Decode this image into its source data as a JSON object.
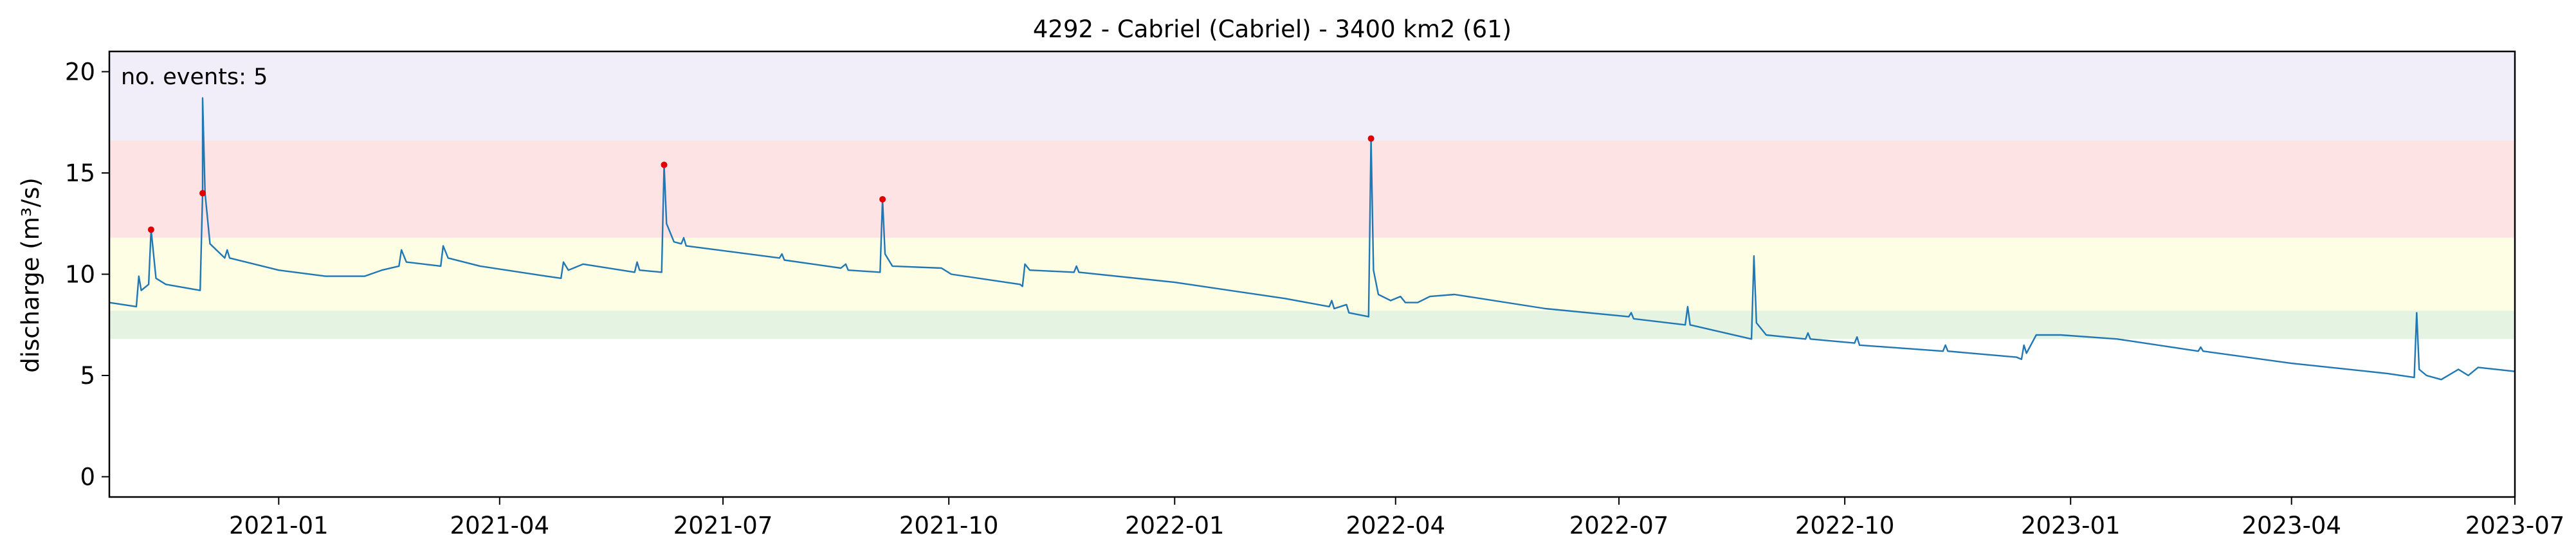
{
  "chart_data": {
    "type": "line",
    "title": "4292 - Cabriel (Cabriel) - 3400 km2 (61)",
    "ylabel": "discharge (m³/s)",
    "xlabel": "",
    "annotation": "no. events: 5",
    "xlim": [
      "2020-10-24",
      "2023-07-01"
    ],
    "ylim": [
      -1,
      21
    ],
    "yticks": [
      0,
      5,
      10,
      15,
      20
    ],
    "xticks": [
      "2021-01-01",
      "2021-04-01",
      "2021-07-01",
      "2021-10-01",
      "2022-01-01",
      "2022-04-01",
      "2022-07-01",
      "2022-10-01",
      "2023-01-01",
      "2023-04-01",
      "2023-07-01"
    ],
    "xtick_labels": [
      "2021-01",
      "2021-04",
      "2021-07",
      "2021-10",
      "2022-01",
      "2022-04",
      "2022-07",
      "2022-10",
      "2023-01",
      "2023-04",
      "2023-07"
    ],
    "grid": false,
    "bands": [
      {
        "from": 6.8,
        "to": 8.2,
        "color": "#e5f3e3"
      },
      {
        "from": 8.2,
        "to": 11.8,
        "color": "#fefee5"
      },
      {
        "from": 11.8,
        "to": 16.6,
        "color": "#fee3e5"
      },
      {
        "from": 16.6,
        "to": 21,
        "color": "#f1eef9"
      }
    ],
    "series": [
      {
        "color": "#1f77b4",
        "points": [
          [
            "2020-10-24",
            8.6
          ],
          [
            "2020-11-04",
            8.4
          ],
          [
            "2020-11-05",
            9.9
          ],
          [
            "2020-11-06",
            9.2
          ],
          [
            "2020-11-09",
            9.5
          ],
          [
            "2020-11-10",
            12.2
          ],
          [
            "2020-11-12",
            9.8
          ],
          [
            "2020-11-16",
            9.5
          ],
          [
            "2020-11-30",
            9.2
          ],
          [
            "2020-12-01",
            14.0
          ],
          [
            "2020-12-01",
            18.7
          ],
          [
            "2020-12-02",
            14.0
          ],
          [
            "2020-12-04",
            11.5
          ],
          [
            "2020-12-10",
            10.8
          ],
          [
            "2020-12-11",
            11.2
          ],
          [
            "2020-12-12",
            10.8
          ],
          [
            "2021-01-01",
            10.2
          ],
          [
            "2021-01-20",
            9.9
          ],
          [
            "2021-02-05",
            9.9
          ],
          [
            "2021-02-12",
            10.2
          ],
          [
            "2021-02-19",
            10.4
          ],
          [
            "2021-02-20",
            11.2
          ],
          [
            "2021-02-22",
            10.6
          ],
          [
            "2021-03-08",
            10.4
          ],
          [
            "2021-03-09",
            11.4
          ],
          [
            "2021-03-11",
            10.8
          ],
          [
            "2021-03-24",
            10.4
          ],
          [
            "2021-04-20",
            9.9
          ],
          [
            "2021-04-26",
            9.8
          ],
          [
            "2021-04-27",
            10.6
          ],
          [
            "2021-04-29",
            10.2
          ],
          [
            "2021-05-05",
            10.5
          ],
          [
            "2021-05-26",
            10.1
          ],
          [
            "2021-05-27",
            10.6
          ],
          [
            "2021-05-28",
            10.2
          ],
          [
            "2021-06-06",
            10.1
          ],
          [
            "2021-06-07",
            15.4
          ],
          [
            "2021-06-08",
            12.5
          ],
          [
            "2021-06-11",
            11.6
          ],
          [
            "2021-06-14",
            11.5
          ],
          [
            "2021-06-15",
            11.8
          ],
          [
            "2021-06-16",
            11.4
          ],
          [
            "2021-07-24",
            10.8
          ],
          [
            "2021-07-25",
            11.0
          ],
          [
            "2021-07-26",
            10.7
          ],
          [
            "2021-08-18",
            10.3
          ],
          [
            "2021-08-20",
            10.5
          ],
          [
            "2021-08-21",
            10.2
          ],
          [
            "2021-09-03",
            10.1
          ],
          [
            "2021-09-04",
            13.7
          ],
          [
            "2021-09-05",
            11.0
          ],
          [
            "2021-09-08",
            10.4
          ],
          [
            "2021-09-28",
            10.3
          ],
          [
            "2021-10-02",
            10.0
          ],
          [
            "2021-10-30",
            9.5
          ],
          [
            "2021-10-31",
            9.4
          ],
          [
            "2021-11-01",
            10.5
          ],
          [
            "2021-11-03",
            10.2
          ],
          [
            "2021-11-21",
            10.1
          ],
          [
            "2021-11-22",
            10.4
          ],
          [
            "2021-11-23",
            10.1
          ],
          [
            "2022-01-01",
            9.6
          ],
          [
            "2022-02-15",
            8.8
          ],
          [
            "2022-03-05",
            8.4
          ],
          [
            "2022-03-06",
            8.7
          ],
          [
            "2022-03-07",
            8.3
          ],
          [
            "2022-03-12",
            8.5
          ],
          [
            "2022-03-13",
            8.1
          ],
          [
            "2022-03-21",
            7.9
          ],
          [
            "2022-03-22",
            16.7
          ],
          [
            "2022-03-23",
            10.2
          ],
          [
            "2022-03-25",
            9.0
          ],
          [
            "2022-03-30",
            8.7
          ],
          [
            "2022-04-03",
            8.9
          ],
          [
            "2022-04-05",
            8.6
          ],
          [
            "2022-04-10",
            8.6
          ],
          [
            "2022-04-15",
            8.9
          ],
          [
            "2022-04-25",
            9.0
          ],
          [
            "2022-06-01",
            8.3
          ],
          [
            "2022-07-05",
            7.9
          ],
          [
            "2022-07-06",
            8.1
          ],
          [
            "2022-07-07",
            7.8
          ],
          [
            "2022-07-28",
            7.5
          ],
          [
            "2022-07-29",
            8.4
          ],
          [
            "2022-07-30",
            7.5
          ],
          [
            "2022-08-24",
            6.8
          ],
          [
            "2022-08-25",
            10.9
          ],
          [
            "2022-08-26",
            7.6
          ],
          [
            "2022-08-30",
            7.0
          ],
          [
            "2022-09-15",
            6.8
          ],
          [
            "2022-09-16",
            7.1
          ],
          [
            "2022-09-17",
            6.8
          ],
          [
            "2022-10-05",
            6.6
          ],
          [
            "2022-10-06",
            6.9
          ],
          [
            "2022-10-07",
            6.5
          ],
          [
            "2022-11-10",
            6.2
          ],
          [
            "2022-11-11",
            6.5
          ],
          [
            "2022-11-12",
            6.2
          ],
          [
            "2022-12-10",
            5.9
          ],
          [
            "2022-12-12",
            5.8
          ],
          [
            "2022-12-13",
            6.5
          ],
          [
            "2022-12-14",
            6.1
          ],
          [
            "2022-12-18",
            7.0
          ],
          [
            "2022-12-28",
            7.0
          ],
          [
            "2023-01-20",
            6.8
          ],
          [
            "2023-02-22",
            6.2
          ],
          [
            "2023-02-23",
            6.4
          ],
          [
            "2023-02-24",
            6.2
          ],
          [
            "2023-04-01",
            5.6
          ],
          [
            "2023-05-10",
            5.1
          ],
          [
            "2023-05-21",
            4.9
          ],
          [
            "2023-05-22",
            8.1
          ],
          [
            "2023-05-23",
            5.3
          ],
          [
            "2023-05-26",
            5.0
          ],
          [
            "2023-06-01",
            4.8
          ],
          [
            "2023-06-08",
            5.3
          ],
          [
            "2023-06-12",
            5.0
          ],
          [
            "2023-06-16",
            5.4
          ],
          [
            "2023-07-01",
            5.2
          ]
        ]
      }
    ],
    "events": [
      {
        "date": "2020-11-10",
        "value": 12.2
      },
      {
        "date": "2020-12-01",
        "value": 14.0
      },
      {
        "date": "2021-06-07",
        "value": 15.4
      },
      {
        "date": "2021-09-04",
        "value": 13.7
      },
      {
        "date": "2022-03-22",
        "value": 16.7
      }
    ],
    "colors": {
      "line": "#1f77b4",
      "events": "#e00000",
      "annotation": "#e00000"
    }
  }
}
